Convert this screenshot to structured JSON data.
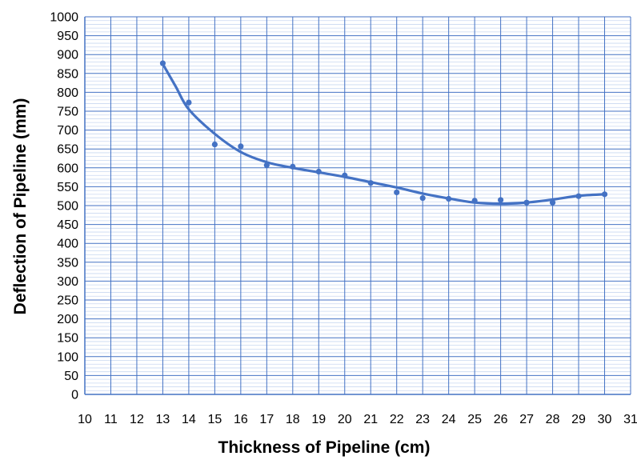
{
  "chart_data": {
    "type": "scatter",
    "xlabel": "Thickness of Pipeline (cm)",
    "ylabel": "Deflection of Pipeline  (mm)",
    "xlim": [
      10,
      31
    ],
    "ylim": [
      0,
      1000
    ],
    "x_ticks": [
      10,
      11,
      12,
      13,
      14,
      15,
      16,
      17,
      18,
      19,
      20,
      21,
      22,
      23,
      24,
      25,
      26,
      27,
      28,
      29,
      30,
      31
    ],
    "y_ticks": [
      0,
      50,
      100,
      150,
      200,
      250,
      300,
      350,
      400,
      450,
      500,
      550,
      600,
      650,
      700,
      750,
      800,
      850,
      900,
      950,
      1000
    ],
    "grid": true,
    "minor_grid": true,
    "legend": "none",
    "series": [
      {
        "color": "#4472C4",
        "x": [
          13,
          14,
          15,
          16,
          17,
          18,
          19,
          20,
          21,
          22,
          23,
          24,
          25,
          26,
          27,
          28,
          29,
          30
        ],
        "y": [
          877,
          773,
          662,
          657,
          607,
          603,
          590,
          580,
          560,
          535,
          520,
          518,
          513,
          515,
          508,
          508,
          525,
          530
        ]
      }
    ],
    "trendline": {
      "color": "#4472C4",
      "x": [
        13,
        13.5,
        14,
        15,
        16,
        17,
        18,
        19,
        20,
        21,
        22,
        23,
        24,
        25,
        26,
        27,
        28,
        29,
        30
      ],
      "y": [
        875,
        815,
        755,
        690,
        642,
        615,
        600,
        588,
        576,
        562,
        548,
        532,
        519,
        508,
        505,
        508,
        516,
        526,
        530
      ]
    }
  },
  "colors": {
    "axis": "#4472C4",
    "major_grid": "#4472C4",
    "minor_grid": "#C9D8F1",
    "marker": "#4472C4",
    "line": "#4472C4"
  }
}
